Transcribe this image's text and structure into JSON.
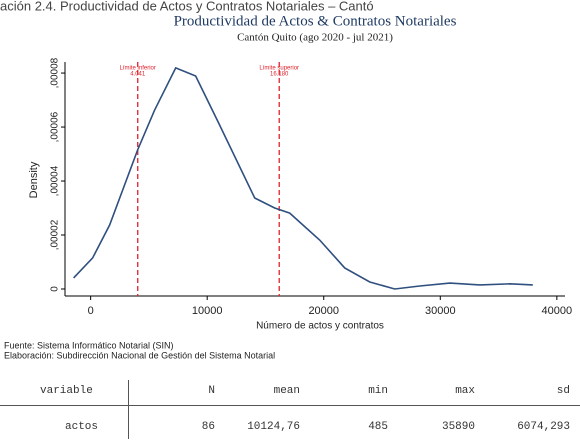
{
  "header": "ación 2.4. Productividad de Actos y Contratos Notariales – Cantó",
  "chart_data": {
    "type": "line",
    "title": "Productividad de Actos & Contratos Notariales",
    "subtitle": "Cantón Quito (ago 2020 - jul 2021)",
    "x_label": "Número de actos y contratos",
    "y_label": "Density",
    "x": [
      -1460,
      170,
      1630,
      4030,
      5490,
      7300,
      9010,
      11070,
      14080,
      15790,
      17080,
      19660,
      21800,
      23950,
      26090,
      28240,
      30820,
      33390,
      35970,
      37940
    ],
    "series": [
      {
        "name": "Density",
        "color": "#2f4f7f",
        "values": [
          4.1e-06,
          1.15e-05,
          2.37e-05,
          5.15e-05,
          6.63e-05,
          8.19e-05,
          7.89e-05,
          6.07e-05,
          3.37e-05,
          3e-05,
          2.81e-05,
          1.81e-05,
          7.8e-06,
          2.6e-06,
          0,
          1.1e-06,
          2.2e-06,
          1.5e-06,
          1.9e-06,
          1.5e-06
        ]
      }
    ],
    "xlim": [
      -2200,
      40700
    ],
    "ylim": [
      -2.6e-06,
      8.41e-05
    ],
    "xticks": [
      0,
      10000,
      20000,
      30000,
      40000
    ],
    "yticks": [
      {
        "value": 0,
        "label": "0"
      },
      {
        "value": 2e-05,
        "label": ",00002"
      },
      {
        "value": 4e-05,
        "label": ",00004"
      },
      {
        "value": 6e-05,
        "label": ",00006"
      },
      {
        "value": 8e-05,
        "label": ",00008"
      }
    ],
    "reference_lines": [
      {
        "x": 4041,
        "label": "Límite inferior",
        "value_label": "4.041",
        "color": "#e0202a"
      },
      {
        "x": 16180,
        "label": "Límite superior",
        "value_label": "16.180",
        "color": "#e0202a"
      }
    ],
    "grid": false
  },
  "notes": [
    "Fuente: Sistema Informático Notarial (SIN)",
    "Elaboración: Subdirección Nacional de Gestión del Sistema Notarial"
  ],
  "table": {
    "columns": [
      "variable",
      "N",
      "mean",
      "min",
      "max",
      "sd"
    ],
    "rows": [
      [
        "actos",
        "86",
        "10124,76",
        "485",
        "35890",
        "6074,293"
      ]
    ]
  }
}
